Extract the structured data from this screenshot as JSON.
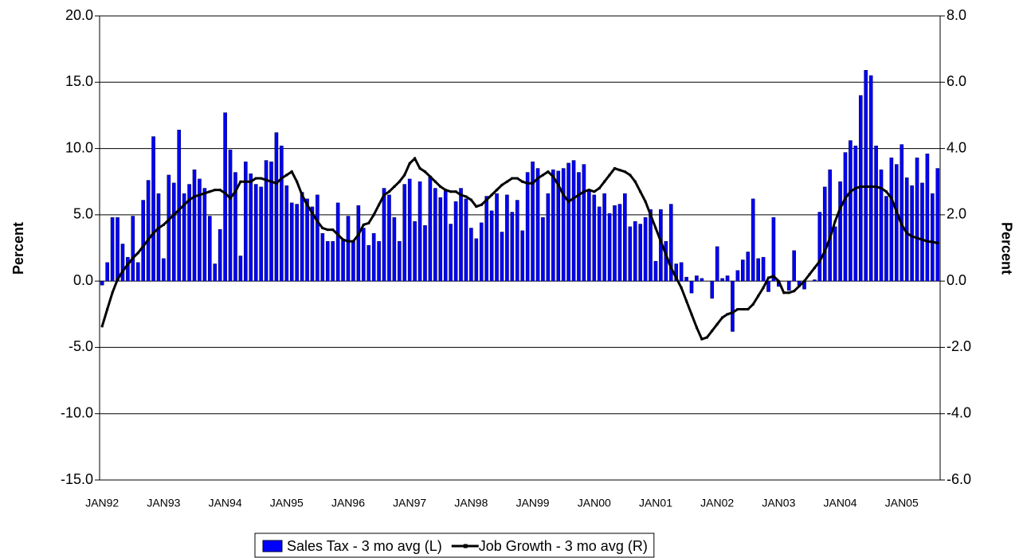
{
  "chart_data": {
    "type": "bar_line",
    "y_label": "Percent",
    "y2_label": "Percent",
    "categories": [
      "JAN92",
      null,
      null,
      null,
      null,
      null,
      null,
      null,
      null,
      null,
      null,
      null,
      "JAN93",
      null,
      null,
      null,
      null,
      null,
      null,
      null,
      null,
      null,
      null,
      null,
      "JAN94",
      null,
      null,
      null,
      null,
      null,
      null,
      null,
      null,
      null,
      null,
      null,
      "JAN95",
      null,
      null,
      null,
      null,
      null,
      null,
      null,
      null,
      null,
      null,
      null,
      "JAN96",
      null,
      null,
      null,
      null,
      null,
      null,
      null,
      null,
      null,
      null,
      null,
      "JAN97",
      null,
      null,
      null,
      null,
      null,
      null,
      null,
      null,
      null,
      null,
      null,
      "JAN98",
      null,
      null,
      null,
      null,
      null,
      null,
      null,
      null,
      null,
      null,
      null,
      "JAN99",
      null,
      null,
      null,
      null,
      null,
      null,
      null,
      null,
      null,
      null,
      null,
      "JAN00",
      null,
      null,
      null,
      null,
      null,
      null,
      null,
      null,
      null,
      null,
      null,
      "JAN01",
      null,
      null,
      null,
      null,
      null,
      null,
      null,
      null,
      null,
      null,
      null,
      "JAN02",
      null,
      null,
      null,
      null,
      null,
      null,
      null,
      null,
      null,
      null,
      null,
      "JAN03",
      null,
      null,
      null,
      null,
      null,
      null,
      null,
      null,
      null,
      null,
      null,
      "JAN04",
      null,
      null,
      null,
      null,
      null,
      null,
      null,
      null,
      null,
      null,
      null,
      "JAN05",
      null,
      null,
      null,
      null,
      null,
      null,
      null
    ],
    "series": [
      {
        "name": "Sales Tax - 3 mo avg (L)",
        "type": "bar",
        "color": "#0000ff",
        "axis": "y",
        "values": [
          -0.3,
          1.4,
          4.8,
          4.8,
          2.8,
          1.8,
          4.9,
          1.4,
          6.1,
          7.6,
          10.9,
          6.6,
          1.7,
          8.0,
          7.4,
          11.4,
          6.6,
          7.3,
          8.4,
          7.7,
          7.0,
          4.9,
          1.3,
          3.9,
          12.7,
          9.9,
          8.2,
          1.9,
          9.0,
          8.1,
          7.3,
          7.1,
          9.1,
          9.0,
          11.2,
          10.2,
          7.2,
          5.9,
          5.8,
          6.7,
          6.2,
          5.6,
          6.5,
          3.6,
          3.0,
          3.0,
          5.9,
          3.1,
          4.9,
          3.0,
          5.7,
          4.0,
          2.7,
          3.6,
          3.0,
          7.0,
          6.5,
          4.8,
          3.0,
          7.3,
          7.7,
          4.5,
          7.5,
          4.2,
          7.9,
          7.0,
          6.3,
          6.8,
          4.3,
          6.0,
          7.0,
          6.2,
          4.0,
          3.2,
          4.4,
          6.4,
          5.3,
          6.6,
          3.7,
          6.5,
          5.2,
          6.1,
          3.8,
          8.2,
          9.0,
          8.5,
          4.8,
          6.6,
          8.4,
          8.3,
          8.5,
          8.9,
          9.1,
          8.2,
          8.8,
          6.9,
          6.5,
          5.6,
          6.6,
          5.1,
          5.7,
          5.8,
          6.6,
          4.1,
          4.5,
          4.3,
          4.8,
          5.4,
          1.5,
          5.4,
          3.0,
          5.8,
          1.3,
          1.4,
          0.3,
          -0.9,
          0.4,
          0.2,
          0,
          -1.3,
          2.6,
          0.2,
          0.4,
          -3.8,
          0.8,
          1.6,
          2.2,
          6.2,
          1.7,
          1.8,
          -0.8,
          4.8,
          -0.4,
          0,
          -0.7,
          2.3,
          -0.3,
          -0.6,
          0,
          0.1,
          5.2,
          7.1,
          8.4,
          4.1,
          7.5,
          9.7,
          10.6,
          10.2,
          14.0,
          15.9,
          15.5,
          10.2,
          8.4,
          6.4,
          9.3,
          8.8,
          10.3,
          7.8,
          7.2,
          9.3,
          7.4,
          9.6,
          6.6,
          8.5
        ]
      },
      {
        "name": "Job Growth - 3 mo avg (R)",
        "type": "line",
        "color": "#000000",
        "axis": "y2",
        "values": [
          -1.36,
          -0.85,
          -0.35,
          0.05,
          0.3,
          0.5,
          0.7,
          0.85,
          1.05,
          1.25,
          1.45,
          1.6,
          1.7,
          1.85,
          2.0,
          2.15,
          2.3,
          2.45,
          2.55,
          2.6,
          2.65,
          2.7,
          2.75,
          2.75,
          2.65,
          2.5,
          2.7,
          3.0,
          3.0,
          3.0,
          3.1,
          3.1,
          3.05,
          3.0,
          2.95,
          3.1,
          3.2,
          3.3,
          3.0,
          2.6,
          2.3,
          2.05,
          1.8,
          1.6,
          1.55,
          1.55,
          1.4,
          1.25,
          1.2,
          1.2,
          1.4,
          1.7,
          1.75,
          2.0,
          2.3,
          2.6,
          2.7,
          2.85,
          3.0,
          3.2,
          3.55,
          3.7,
          3.4,
          3.3,
          3.15,
          3.0,
          2.85,
          2.75,
          2.7,
          2.7,
          2.6,
          2.55,
          2.45,
          2.25,
          2.3,
          2.45,
          2.6,
          2.75,
          2.9,
          3.0,
          3.1,
          3.1,
          3.0,
          2.95,
          2.95,
          3.1,
          3.2,
          3.3,
          3.15,
          2.9,
          2.6,
          2.4,
          2.5,
          2.6,
          2.7,
          2.75,
          2.7,
          2.8,
          3.0,
          3.2,
          3.4,
          3.35,
          3.3,
          3.2,
          3.0,
          2.7,
          2.4,
          2.0,
          1.6,
          1.2,
          0.8,
          0.4,
          0.1,
          -0.2,
          -0.6,
          -1.0,
          -1.4,
          -1.75,
          -1.7,
          -1.5,
          -1.3,
          -1.1,
          -1.0,
          -0.95,
          -0.85,
          -0.85,
          -0.85,
          -0.7,
          -0.45,
          -0.2,
          0.1,
          0.15,
          0,
          -0.35,
          -0.35,
          -0.3,
          -0.15,
          0,
          0.2,
          0.4,
          0.6,
          0.9,
          1.3,
          1.8,
          2.2,
          2.5,
          2.7,
          2.8,
          2.85,
          2.85,
          2.85,
          2.85,
          2.8,
          2.7,
          2.5,
          2.1,
          1.7,
          1.45,
          1.35,
          1.3,
          1.25,
          1.2,
          1.18,
          1.15
        ]
      }
    ],
    "ylim": [
      -15,
      20
    ],
    "yticks": [
      {
        "value": -15,
        "label": "-15.0"
      },
      {
        "value": -10,
        "label": "-10.0"
      },
      {
        "value": -5,
        "label": "-5.0"
      },
      {
        "value": 0,
        "label": "0.0"
      },
      {
        "value": 5,
        "label": "5.0"
      },
      {
        "value": 10,
        "label": "10.0"
      },
      {
        "value": 15,
        "label": "15.0"
      },
      {
        "value": 20,
        "label": "20.0"
      }
    ],
    "y2lim": [
      -6,
      8
    ],
    "y2ticks": [
      {
        "value": -6,
        "label": "-6.0"
      },
      {
        "value": -4,
        "label": "-4.0"
      },
      {
        "value": -2,
        "label": "-2.0"
      },
      {
        "value": 0,
        "label": "0.0"
      },
      {
        "value": 2,
        "label": "2.0"
      },
      {
        "value": 4,
        "label": "4.0"
      },
      {
        "value": 6,
        "label": "6.0"
      },
      {
        "value": 8,
        "label": "8.0"
      }
    ],
    "grid": true,
    "legend": "bottom"
  }
}
